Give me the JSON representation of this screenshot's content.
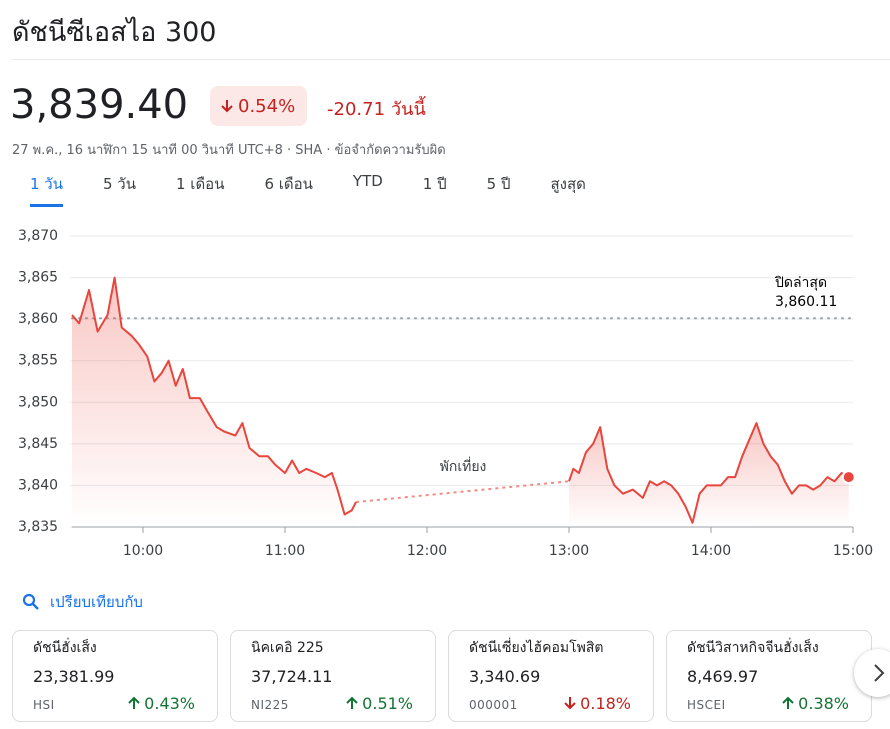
{
  "header": {
    "title": "ดัชนีซีเอสไอ 300",
    "price": "3,839.40",
    "change_pct": "0.54%",
    "change_direction": "down",
    "change_abs": "-20.71",
    "period": "วันนี้",
    "info": "27 พ.ค., 16 นาฬิกา 15 นาที 00 วินาที UTC+8 · SHA · ข้อจำกัดความรับผิด"
  },
  "tabs": {
    "items": [
      "1 วัน",
      "5 วัน",
      "1 เดือน",
      "6 เดือน",
      "YTD",
      "1 ปี",
      "5 ปี",
      "สูงสุด"
    ],
    "active": 0
  },
  "chart_data": {
    "type": "line",
    "series": [
      {
        "color": "#e8453c",
        "x": [
          9.5,
          9.55,
          9.62,
          9.68,
          9.75,
          9.8,
          9.85,
          9.92,
          9.97,
          10.03,
          10.08,
          10.13,
          10.18,
          10.23,
          10.28,
          10.33,
          10.4,
          10.45,
          10.52,
          10.57,
          10.65,
          10.7,
          10.75,
          10.82,
          10.88,
          10.93,
          11.0,
          11.05,
          11.1,
          11.15,
          11.22,
          11.28,
          11.33,
          11.37,
          11.42,
          11.47,
          11.5
        ],
        "values": [
          3860.5,
          3859.5,
          3863.5,
          3858.5,
          3860.5,
          3865,
          3859,
          3858,
          3857,
          3855.5,
          3852.5,
          3853.5,
          3855,
          3852,
          3854,
          3850.5,
          3850.5,
          3849,
          3847,
          3846.5,
          3846,
          3847.5,
          3844.5,
          3843.5,
          3843.5,
          3842.5,
          3841.5,
          3843,
          3841.5,
          3842,
          3841.5,
          3841,
          3841.5,
          3839.5,
          3836.5,
          3837,
          3838
        ]
      },
      {
        "color": "#e8453c",
        "x": [
          13.0,
          13.03,
          13.07,
          13.12,
          13.17,
          13.22,
          13.27,
          13.32,
          13.38,
          13.45,
          13.52,
          13.57,
          13.62,
          13.67,
          13.72,
          13.77,
          13.82,
          13.87,
          13.92,
          13.97,
          14.02,
          14.07,
          14.12,
          14.17,
          14.22,
          14.27,
          14.32,
          14.37,
          14.42,
          14.47,
          14.52,
          14.57,
          14.62,
          14.67,
          14.72,
          14.77,
          14.82,
          14.87,
          14.92,
          14.97
        ],
        "values": [
          3840.5,
          3842,
          3841.5,
          3844,
          3845,
          3847,
          3842,
          3840,
          3839,
          3839.5,
          3838.5,
          3840.5,
          3840,
          3840.5,
          3840,
          3839,
          3837.5,
          3835.5,
          3839,
          3840,
          3840,
          3840,
          3841,
          3841,
          3843.5,
          3845.5,
          3847.5,
          3845,
          3843.5,
          3842.5,
          3840.5,
          3839,
          3840,
          3840,
          3839.5,
          3840,
          3841,
          3840.5,
          3841.5,
          3841
        ]
      }
    ],
    "xlim": [
      9.5,
      15
    ],
    "xticks": [
      {
        "value": 10,
        "label": "10:00"
      },
      {
        "value": 11,
        "label": "11:00"
      },
      {
        "value": 12,
        "label": "12:00"
      },
      {
        "value": 13,
        "label": "13:00"
      },
      {
        "value": 14,
        "label": "14:00"
      },
      {
        "value": 15,
        "label": "15:00"
      }
    ],
    "ylim": [
      3835,
      3870
    ],
    "yticks": [
      {
        "value": 3835,
        "label": "3,835"
      },
      {
        "value": 3840,
        "label": "3,840"
      },
      {
        "value": 3845,
        "label": "3,845"
      },
      {
        "value": 3850,
        "label": "3,850"
      },
      {
        "value": 3855,
        "label": "3,855"
      },
      {
        "value": 3860,
        "label": "3,860"
      },
      {
        "value": 3865,
        "label": "3,865"
      },
      {
        "value": 3870,
        "label": "3,870"
      }
    ],
    "grid": true,
    "previous_close": {
      "label": "ปิดล่าสุด",
      "value": 3860.11,
      "value_label": "3,860.11"
    },
    "break_label": "พักเที่ยง"
  },
  "compare": {
    "label": "เปรียบเทียบกับ"
  },
  "cards": [
    {
      "name": "ดัชนีฮั่งเส็ง",
      "price": "23,381.99",
      "code": "HSI",
      "change": "0.43%",
      "direction": "up"
    },
    {
      "name": "นิคเคอิ 225",
      "price": "37,724.11",
      "code": "NI225",
      "change": "0.51%",
      "direction": "up"
    },
    {
      "name": "ดัชนีเซี่ยงไฮ้คอมโพสิต",
      "price": "3,340.69",
      "code": "000001",
      "change": "0.18%",
      "direction": "down"
    },
    {
      "name": "ดัชนีวิสาหกิจจีนฮั่งเส็ง",
      "price": "8,469.97",
      "code": "HSCEI",
      "change": "0.38%",
      "direction": "up"
    }
  ]
}
